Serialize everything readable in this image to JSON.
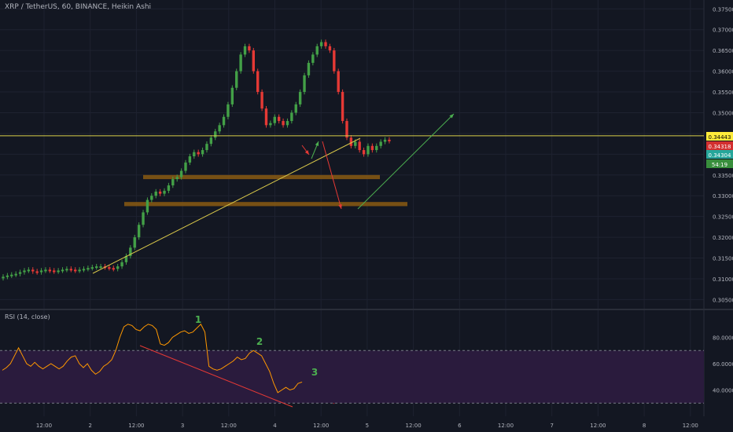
{
  "header": {
    "title": "XRP / TetherUS, 60, BINANCE, Heikin Ashi"
  },
  "rsi": {
    "title": "RSI (14, close)",
    "levels": [
      "80.0000",
      "60.0000",
      "40.0000"
    ],
    "annotations": [
      "1",
      "2",
      "3"
    ]
  },
  "price_axis": {
    "ticks": [
      "0.37500",
      "0.37000",
      "0.36500",
      "0.36000",
      "0.35500",
      "0.35000",
      "0.34500",
      "0.34000",
      "0.33500",
      "0.33000",
      "0.32500",
      "0.32000",
      "0.31500",
      "0.31000",
      "0.30500"
    ],
    "labels": [
      {
        "text": "0.34443",
        "bg": "#ffeb3b",
        "fg": "#000000"
      },
      {
        "text": "0.34318",
        "bg": "#d32f2f",
        "fg": "#ffffff"
      },
      {
        "text": "0.34304",
        "bg": "#26a69a",
        "fg": "#ffffff"
      },
      {
        "text": "54:19",
        "bg": "#388e3c",
        "fg": "#ffffff"
      }
    ]
  },
  "time_axis": {
    "ticks": [
      "12:00",
      "2",
      "12:00",
      "3",
      "12:00",
      "4",
      "12:00",
      "5",
      "12:00",
      "6",
      "12:00",
      "7",
      "12:00",
      "8",
      "12:00"
    ]
  },
  "colors": {
    "background": "#131722",
    "up": "#43a047",
    "down": "#e53935",
    "rsi_line": "#ff9800",
    "rsi_band": "#2a1b3d",
    "zone": "#8a5a12",
    "trendline": "#d9c84a",
    "resistance": "#d9d04a",
    "arrow_green": "#4caf50",
    "arrow_red": "#e53935",
    "divergence": "#e53935",
    "annotation": "#4caf50",
    "grid": "#1e2230",
    "text": "#b2b5be"
  },
  "chart_data": {
    "type": "candlestick",
    "symbol": "XRP / TetherUS",
    "interval": "60",
    "exchange": "BINANCE",
    "style": "Heikin Ashi",
    "ylim": [
      0.303,
      0.376
    ],
    "resistance_level": 0.34443,
    "zones": [
      [
        0.335,
        0.334
      ],
      [
        0.3285,
        0.3275
      ]
    ],
    "candles": [
      0.3105,
      0.3108,
      0.311,
      0.3112,
      0.3116,
      0.312,
      0.3122,
      0.3118,
      0.3116,
      0.312,
      0.3122,
      0.312,
      0.3118,
      0.312,
      0.3122,
      0.3124,
      0.3122,
      0.312,
      0.3122,
      0.3124,
      0.3126,
      0.3128,
      0.313,
      0.313,
      0.3128,
      0.3126,
      0.3124,
      0.313,
      0.314,
      0.3155,
      0.3175,
      0.32,
      0.323,
      0.326,
      0.329,
      0.33,
      0.331,
      0.3305,
      0.3312,
      0.3325,
      0.334,
      0.3345,
      0.336,
      0.338,
      0.3395,
      0.3405,
      0.34,
      0.341,
      0.3425,
      0.344,
      0.3455,
      0.347,
      0.349,
      0.352,
      0.356,
      0.36,
      0.364,
      0.366,
      0.365,
      0.36,
      0.355,
      0.351,
      0.347,
      0.3475,
      0.349,
      0.348,
      0.347,
      0.348,
      0.35,
      0.352,
      0.355,
      0.359,
      0.362,
      0.364,
      0.366,
      0.367,
      0.366,
      0.365,
      0.36,
      0.355,
      0.348,
      0.344,
      0.342,
      0.343,
      0.341,
      0.34,
      0.342,
      0.341,
      0.342,
      0.343,
      0.3435,
      0.3432
    ],
    "rsi": [
      55,
      57,
      60,
      66,
      72,
      66,
      60,
      58,
      61,
      58,
      56,
      58,
      60,
      58,
      56,
      58,
      62,
      65,
      66,
      60,
      57,
      60,
      55,
      52,
      54,
      58,
      60,
      63,
      70,
      80,
      88,
      90,
      89,
      86,
      85,
      88,
      90,
      89,
      86,
      75,
      74,
      76,
      80,
      82,
      84,
      85,
      83,
      84,
      87,
      90,
      84,
      58,
      56,
      55,
      56,
      58,
      60,
      62,
      65,
      63,
      64,
      68,
      70,
      68,
      66,
      60,
      54,
      45,
      38,
      40,
      42,
      40,
      41,
      45,
      46
    ]
  }
}
